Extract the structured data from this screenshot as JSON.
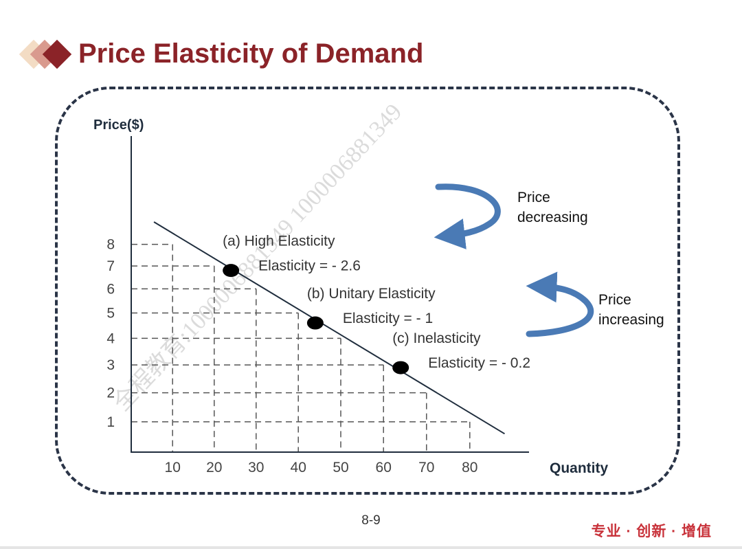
{
  "slide": {
    "title": "Price Elasticity of Demand",
    "page_number": "8-9",
    "slogan": "专业 · 创新 · 增值",
    "watermark": "全程教育:1000006881349 1000006881349"
  },
  "colors": {
    "title": "#8b2328",
    "axis": "#1f2d3d",
    "arrow": "#4a7ab5",
    "slogan": "#c8323a"
  },
  "chart_data": {
    "type": "line",
    "xlabel": "Quantity",
    "ylabel": "Price($)",
    "x_ticks": [
      10,
      20,
      30,
      40,
      50,
      60,
      70,
      80
    ],
    "y_ticks": [
      1,
      2,
      3,
      4,
      5,
      6,
      7,
      8
    ],
    "demand_line": {
      "x": [
        5.5,
        88
      ],
      "y": [
        9.1,
        0.6
      ]
    },
    "dashed_guides": [
      {
        "x": 10,
        "y": 8
      },
      {
        "x": 20,
        "y": 7
      },
      {
        "x": 30,
        "y": 6
      },
      {
        "x": 40,
        "y": 5
      },
      {
        "x": 50,
        "y": 4
      },
      {
        "x": 60,
        "y": 3
      },
      {
        "x": 70,
        "y": 2
      },
      {
        "x": 80,
        "y": 1
      }
    ],
    "points": [
      {
        "label": "(a)  High Elasticity",
        "elasticity": "Elasticity = - 2.6",
        "x": 24,
        "y": 6.8
      },
      {
        "label": "(b) Unitary Elasticity",
        "elasticity": "Elasticity = - 1",
        "x": 44,
        "y": 4.6
      },
      {
        "label": "(c) Inelasticity",
        "elasticity": "Elasticity = - 0.2",
        "x": 64,
        "y": 2.9
      }
    ],
    "annotations": [
      {
        "text_lines": [
          "Price",
          "decreasing"
        ],
        "direction": "clockwise-left"
      },
      {
        "text_lines": [
          "Price",
          "increasing"
        ],
        "direction": "counterclockwise-left"
      }
    ]
  }
}
